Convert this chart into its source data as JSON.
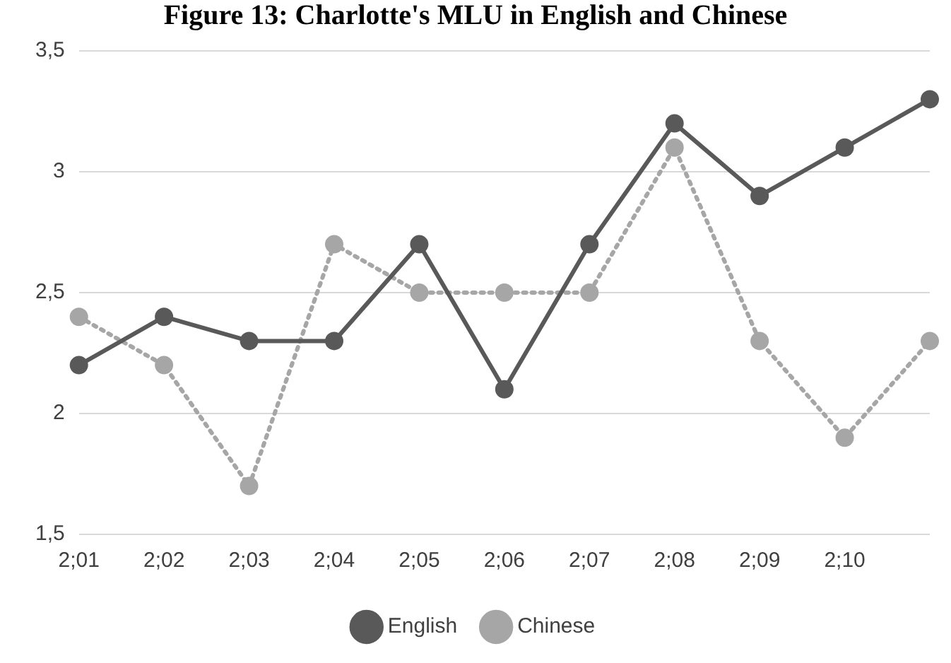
{
  "chart_data": {
    "type": "line",
    "title": "Figure 13: Charlotte's MLU in English and Chinese",
    "categories": [
      "2;01",
      "2;02",
      "2;03",
      "2;04",
      "2;05",
      "2;06",
      "2;07",
      "2;08",
      "2;09",
      "2;10",
      null
    ],
    "series": [
      {
        "name": "English",
        "color": "#595959",
        "line_style": "solid",
        "values": [
          2.2,
          2.4,
          2.3,
          2.3,
          2.7,
          2.1,
          2.7,
          3.2,
          2.9,
          3.1,
          3.3
        ]
      },
      {
        "name": "Chinese",
        "color": "#a6a6a6",
        "line_style": "dotted",
        "values": [
          2.4,
          2.2,
          1.7,
          2.7,
          2.5,
          2.5,
          2.5,
          3.1,
          2.3,
          1.9,
          2.3
        ]
      }
    ],
    "ylim": [
      1.5,
      3.5
    ],
    "yticks": [
      {
        "value": 1.5,
        "label": "1,5"
      },
      {
        "value": 2,
        "label": "2"
      },
      {
        "value": 2.5,
        "label": "2,5"
      },
      {
        "value": 3,
        "label": "3"
      },
      {
        "value": 3.5,
        "label": "3,5"
      }
    ],
    "grid": "y",
    "legend": "bottom",
    "marker": "circle"
  }
}
